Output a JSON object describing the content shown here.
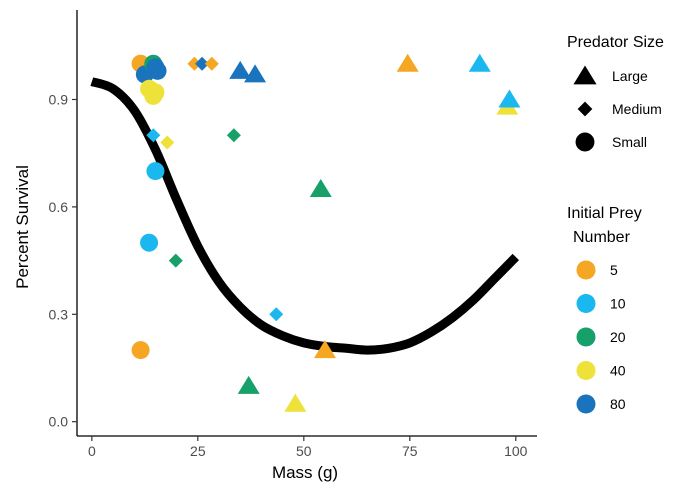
{
  "chart_data": {
    "type": "scatter",
    "xlabel": "Mass (g)",
    "ylabel": "Percent Survival",
    "xlim": [
      -3.5,
      105
    ],
    "ylim": [
      -0.04,
      1.15
    ],
    "x_ticks": [
      0,
      25,
      50,
      75,
      100
    ],
    "y_ticks": [
      0.0,
      0.3,
      0.6,
      0.9
    ],
    "x_tick_labels": [
      "0",
      "25",
      "50",
      "75",
      "100"
    ],
    "y_tick_labels": [
      "0.0",
      "0.3",
      "0.6",
      "0.9"
    ],
    "grid": false,
    "legend_position": "right",
    "legends": {
      "shape": {
        "title": "Predator Size",
        "items": [
          {
            "label": "Large",
            "shape": "triangle"
          },
          {
            "label": "Medium",
            "shape": "diamond"
          },
          {
            "label": "Small",
            "shape": "circle"
          }
        ]
      },
      "color": {
        "title_lines": [
          "Initial Prey",
          "Number"
        ],
        "items": [
          {
            "label": "5",
            "color": "#F5A623"
          },
          {
            "label": "10",
            "color": "#1AB8EE"
          },
          {
            "label": "20",
            "color": "#17A06A"
          },
          {
            "label": "40",
            "color": "#EEE13A"
          },
          {
            "label": "80",
            "color": "#1A74BD"
          }
        ]
      }
    },
    "points": [
      {
        "x": 11.5,
        "y": 1.0,
        "size": "Small",
        "prey": "5"
      },
      {
        "x": 12.5,
        "y": 0.97,
        "size": "Small",
        "prey": "80"
      },
      {
        "x": 13.5,
        "y": 0.93,
        "size": "Small",
        "prey": "40"
      },
      {
        "x": 14.5,
        "y": 0.91,
        "size": "Small",
        "prey": "40"
      },
      {
        "x": 15.0,
        "y": 0.92,
        "size": "Small",
        "prey": "40"
      },
      {
        "x": 14.5,
        "y": 1.0,
        "size": "Small",
        "prey": "20"
      },
      {
        "x": 15.0,
        "y": 0.99,
        "size": "Small",
        "prey": "80"
      },
      {
        "x": 15.5,
        "y": 0.98,
        "size": "Small",
        "prey": "80"
      },
      {
        "x": 11.5,
        "y": 0.2,
        "size": "Small",
        "prey": "5"
      },
      {
        "x": 13.5,
        "y": 0.5,
        "size": "Small",
        "prey": "10"
      },
      {
        "x": 15.0,
        "y": 0.7,
        "size": "Small",
        "prey": "10"
      },
      {
        "x": 14.5,
        "y": 0.8,
        "size": "Medium",
        "prey": "10"
      },
      {
        "x": 17.8,
        "y": 0.78,
        "size": "Medium",
        "prey": "40"
      },
      {
        "x": 19.8,
        "y": 0.45,
        "size": "Medium",
        "prey": "20"
      },
      {
        "x": 24.2,
        "y": 1.0,
        "size": "Medium",
        "prey": "5"
      },
      {
        "x": 26.0,
        "y": 1.0,
        "size": "Medium",
        "prey": "80"
      },
      {
        "x": 28.3,
        "y": 1.0,
        "size": "Medium",
        "prey": "5"
      },
      {
        "x": 33.5,
        "y": 0.8,
        "size": "Medium",
        "prey": "20"
      },
      {
        "x": 43.5,
        "y": 0.3,
        "size": "Medium",
        "prey": "10"
      },
      {
        "x": 35.0,
        "y": 0.98,
        "size": "Large",
        "prey": "80"
      },
      {
        "x": 38.5,
        "y": 0.97,
        "size": "Large",
        "prey": "80"
      },
      {
        "x": 37.0,
        "y": 0.1,
        "size": "Large",
        "prey": "20"
      },
      {
        "x": 48.0,
        "y": 0.05,
        "size": "Large",
        "prey": "40"
      },
      {
        "x": 54.0,
        "y": 0.65,
        "size": "Large",
        "prey": "20"
      },
      {
        "x": 55.0,
        "y": 0.2,
        "size": "Large",
        "prey": "5"
      },
      {
        "x": 74.5,
        "y": 1.0,
        "size": "Large",
        "prey": "5"
      },
      {
        "x": 91.5,
        "y": 1.0,
        "size": "Large",
        "prey": "10"
      },
      {
        "x": 98.0,
        "y": 0.88,
        "size": "Large",
        "prey": "40"
      },
      {
        "x": 98.5,
        "y": 0.9,
        "size": "Large",
        "prey": "10"
      }
    ],
    "fit_curve": {
      "x": [
        0,
        5,
        10,
        15,
        20,
        25,
        30,
        35,
        40,
        45,
        50,
        55,
        60,
        65,
        70,
        75,
        80,
        85,
        90,
        95,
        100
      ],
      "y": [
        0.95,
        0.93,
        0.87,
        0.76,
        0.62,
        0.49,
        0.39,
        0.32,
        0.27,
        0.24,
        0.22,
        0.21,
        0.205,
        0.2,
        0.205,
        0.22,
        0.25,
        0.29,
        0.34,
        0.4,
        0.46
      ]
    }
  }
}
